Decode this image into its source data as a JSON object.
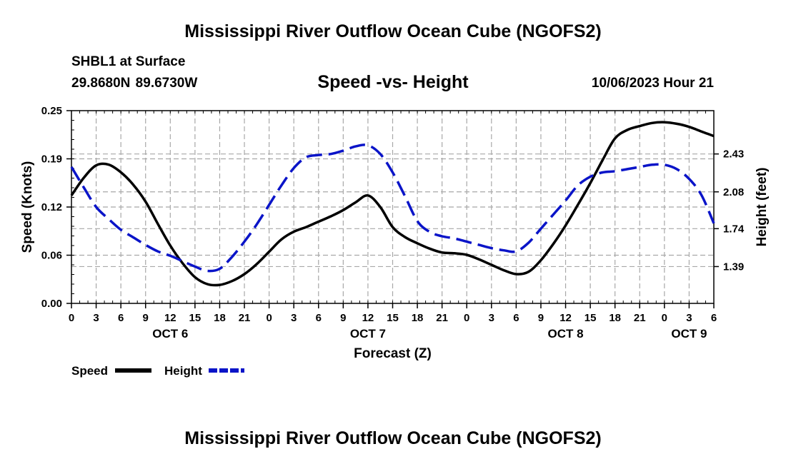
{
  "page": {
    "top_title": "Mississippi River Outflow Ocean Cube (NGOFS2)",
    "station_line": "SHBL1 at Surface",
    "coords_line": "29.8680N  89.6730W",
    "chart_subtitle": "Speed -vs- Height",
    "timestamp": "10/06/2023 Hour 21",
    "bottom_title": "Mississippi River Outflow Ocean Cube (NGOFS2)"
  },
  "colors": {
    "speed": "#000000",
    "height": "#0a14c8",
    "grid": "#a8a8a8"
  },
  "chart_data": {
    "type": "line",
    "title": "Speed -vs- Height",
    "xlabel": "Forecast (Z)",
    "ylabel": "Speed (Knots)",
    "y2label": "Height (feet)",
    "grid": true,
    "x_unit": "hours from OCT 6 00Z",
    "xlim": [
      0,
      78
    ],
    "ylim": [
      0,
      0.25
    ],
    "y2lim": [
      1.05,
      2.83
    ],
    "x_ticks": [
      0,
      3,
      6,
      9,
      12,
      15,
      18,
      21,
      24,
      27,
      30,
      33,
      36,
      39,
      42,
      45,
      48,
      51,
      54,
      57,
      60,
      63,
      66,
      69,
      72,
      75,
      78
    ],
    "x_tick_labels": [
      "0",
      "3",
      "6",
      "9",
      "12",
      "15",
      "18",
      "21",
      "0",
      "3",
      "6",
      "9",
      "12",
      "15",
      "18",
      "21",
      "0",
      "3",
      "6",
      "9",
      "12",
      "15",
      "18",
      "21",
      "0",
      "3",
      "6"
    ],
    "date_labels": [
      {
        "x": 12,
        "label": "OCT 6"
      },
      {
        "x": 36,
        "label": "OCT 7"
      },
      {
        "x": 60,
        "label": "OCT 8"
      },
      {
        "x": 75,
        "label": "OCT 9"
      }
    ],
    "y_ticks": [
      0.0,
      0.0625,
      0.125,
      0.1875,
      0.25
    ],
    "y_tick_labels": [
      "0.00",
      "0.06",
      "0.12",
      "0.19",
      "0.25"
    ],
    "y2_ticks": [
      1.39,
      1.74,
      2.08,
      2.43
    ],
    "y2_tick_labels": [
      "1.39",
      "1.74",
      "2.08",
      "2.43"
    ],
    "legend": {
      "position": "bottom-left",
      "entries": [
        "Speed",
        "Height"
      ]
    },
    "series": [
      {
        "name": "Speed",
        "axis": "left",
        "style": "solid",
        "x": [
          0,
          1.5,
          3,
          4.5,
          6,
          7.5,
          9,
          10.5,
          12,
          13.5,
          15,
          16.5,
          18,
          19.5,
          21,
          22.5,
          24,
          25.5,
          27,
          28.5,
          30,
          31.5,
          33,
          34.5,
          36,
          37.5,
          39,
          40.5,
          42,
          43.5,
          45,
          46.5,
          48,
          49.5,
          51,
          52.5,
          54,
          55.5,
          57,
          58.5,
          60,
          61.5,
          63,
          64.5,
          66,
          67.5,
          69,
          70.5,
          72,
          73.5,
          75,
          76.5,
          78
        ],
        "values": [
          0.14,
          0.163,
          0.179,
          0.18,
          0.17,
          0.154,
          0.132,
          0.103,
          0.075,
          0.052,
          0.034,
          0.025,
          0.024,
          0.029,
          0.038,
          0.051,
          0.067,
          0.083,
          0.093,
          0.099,
          0.106,
          0.113,
          0.121,
          0.131,
          0.14,
          0.125,
          0.099,
          0.086,
          0.078,
          0.071,
          0.066,
          0.065,
          0.063,
          0.057,
          0.05,
          0.043,
          0.038,
          0.041,
          0.056,
          0.077,
          0.101,
          0.128,
          0.156,
          0.186,
          0.214,
          0.225,
          0.23,
          0.234,
          0.235,
          0.233,
          0.229,
          0.223,
          0.217
        ]
      },
      {
        "name": "Height",
        "axis": "right",
        "style": "dashed",
        "x": [
          0,
          1.5,
          3,
          4.5,
          6,
          7.5,
          9,
          10.5,
          12,
          13.5,
          15,
          16.5,
          18,
          19.5,
          21,
          22.5,
          24,
          25.5,
          27,
          28.5,
          30,
          31.5,
          33,
          34.5,
          36,
          37.5,
          39,
          40.5,
          42,
          43.5,
          45,
          46.5,
          48,
          49.5,
          51,
          52.5,
          54,
          55.5,
          57,
          58.5,
          60,
          61.5,
          63,
          64.5,
          66,
          67.5,
          69,
          70.5,
          72,
          73.5,
          75,
          76.5,
          78
        ],
        "values": [
          2.31,
          2.12,
          1.94,
          1.83,
          1.73,
          1.66,
          1.59,
          1.53,
          1.49,
          1.44,
          1.39,
          1.35,
          1.37,
          1.48,
          1.62,
          1.78,
          1.96,
          2.14,
          2.3,
          2.4,
          2.42,
          2.43,
          2.46,
          2.5,
          2.51,
          2.43,
          2.26,
          2.04,
          1.81,
          1.71,
          1.67,
          1.65,
          1.62,
          1.59,
          1.56,
          1.54,
          1.53,
          1.61,
          1.74,
          1.87,
          2.0,
          2.14,
          2.22,
          2.26,
          2.27,
          2.29,
          2.31,
          2.33,
          2.33,
          2.29,
          2.2,
          2.05,
          1.79
        ]
      }
    ]
  }
}
